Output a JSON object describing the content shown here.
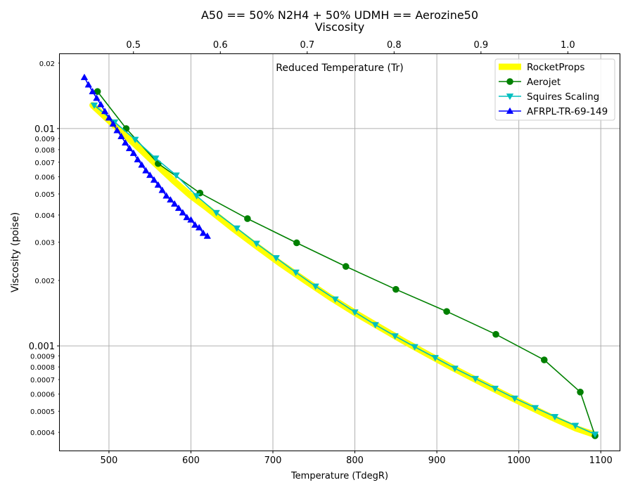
{
  "chart_data": {
    "type": "line",
    "title_line1": "A50 == 50% N2H4 + 50% UDMH == Aerozine50",
    "title_line2": "Viscosity",
    "xlabel": "Temperature (TdegR)",
    "ylabel": "Viscosity (poise)",
    "top_axis_label": "Reduced Temperature (Tr)",
    "x_range": [
      440,
      1123
    ],
    "y_range": [
      0.00033,
      0.022
    ],
    "y_scale": "log",
    "top_axis_range_tr": [
      0.4152,
      1.0596
    ],
    "grid": true,
    "legend_position": "top-right",
    "x_ticks": [
      500,
      600,
      700,
      800,
      900,
      1000,
      1100
    ],
    "x_tick_labels": [
      "500",
      "600",
      "700",
      "800",
      "900",
      "1000",
      "1100"
    ],
    "top_ticks": [
      0.5,
      0.6,
      0.7,
      0.8,
      0.9,
      1.0
    ],
    "top_tick_labels": [
      "0.5",
      "0.6",
      "0.7",
      "0.8",
      "0.9",
      "1.0"
    ],
    "y_major_ticks": [
      0.001,
      0.01
    ],
    "y_major_labels": [
      "0.001",
      "0.01"
    ],
    "y_minor_ticks": [
      0.0004,
      0.0005,
      0.0006,
      0.0007,
      0.0008,
      0.0009,
      0.002,
      0.003,
      0.004,
      0.005,
      0.006,
      0.007,
      0.008,
      0.009,
      0.02
    ],
    "y_minor_labels": [
      "0.0004",
      "0.0005",
      "0.0006",
      "0.0007",
      "0.0008",
      "0.0009",
      "0.002",
      "0.003",
      "0.004",
      "0.005",
      "0.006",
      "0.007",
      "0.008",
      "0.009",
      "0.02"
    ],
    "series": [
      {
        "name": "RocketProps",
        "color": "#ffff00",
        "marker": "none",
        "x": [
          480,
          500,
          520,
          540,
          560,
          580,
          600,
          620,
          650,
          680,
          710,
          740,
          770,
          800,
          830,
          860,
          890,
          920,
          950,
          980,
          1010,
          1040,
          1070,
          1093
        ],
        "y": [
          0.0128,
          0.0109,
          0.0093,
          0.0079,
          0.0067,
          0.0057,
          0.0049,
          0.0043,
          0.0035,
          0.00288,
          0.00238,
          0.00199,
          0.00167,
          0.00142,
          0.00122,
          0.00105,
          0.00091,
          0.00079,
          0.00069,
          0.000605,
          0.000532,
          0.000469,
          0.000417,
          0.00039
        ]
      },
      {
        "name": "Aerojet",
        "color": "#008000",
        "marker": "circle",
        "x": [
          486,
          521,
          560,
          611,
          669,
          729,
          789,
          850,
          912,
          972,
          1031,
          1075,
          1093
        ],
        "y": [
          0.0148,
          0.01,
          0.0069,
          0.00505,
          0.00385,
          0.00298,
          0.00232,
          0.00182,
          0.00144,
          0.00113,
          0.000862,
          0.000613,
          0.000386
        ]
      },
      {
        "name": "Squires Scaling",
        "color": "#00bfbf",
        "marker": "triangle-down",
        "x": [
          482,
          507,
          532,
          557,
          582,
          607,
          631,
          656,
          680,
          704,
          728,
          752,
          776,
          800,
          825,
          849,
          873,
          898,
          922,
          947,
          971,
          995,
          1020,
          1044,
          1069,
          1093
        ],
        "y": [
          0.0128,
          0.0107,
          0.0089,
          0.0073,
          0.0061,
          0.0049,
          0.0041,
          0.00348,
          0.00296,
          0.00254,
          0.00218,
          0.00188,
          0.00164,
          0.00143,
          0.00125,
          0.00111,
          0.00099,
          0.000882,
          0.000788,
          0.000707,
          0.000637,
          0.000574,
          0.000519,
          0.000472,
          0.00043,
          0.000392
        ]
      },
      {
        "name": "AFRPL-TR-69-149",
        "color": "#0000ff",
        "marker": "triangle-up",
        "x": [
          470,
          475,
          480,
          485,
          490,
          495,
          500,
          505,
          510,
          515,
          520,
          525,
          530,
          535,
          540,
          545,
          550,
          555,
          560,
          565,
          570,
          575,
          580,
          585,
          590,
          595,
          600,
          605,
          610,
          615,
          620
        ],
        "y": [
          0.0172,
          0.0159,
          0.0148,
          0.0138,
          0.0129,
          0.012,
          0.0112,
          0.0105,
          0.0098,
          0.0092,
          0.0086,
          0.0081,
          0.0077,
          0.0072,
          0.0068,
          0.0064,
          0.0061,
          0.0058,
          0.0055,
          0.0052,
          0.0049,
          0.0047,
          0.0045,
          0.0043,
          0.0041,
          0.0039,
          0.0038,
          0.0036,
          0.0035,
          0.0033,
          0.0032
        ]
      }
    ]
  }
}
